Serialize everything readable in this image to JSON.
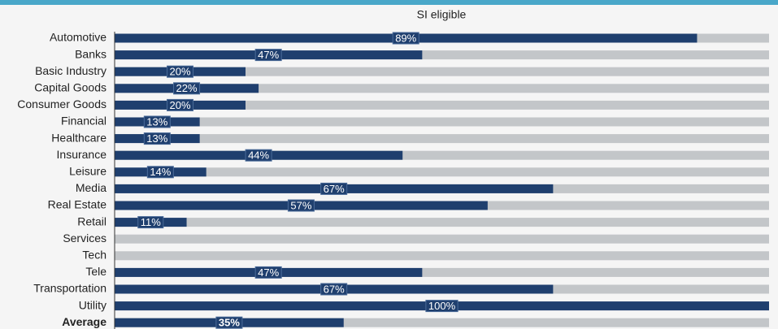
{
  "chart_data": {
    "type": "bar",
    "orientation": "horizontal",
    "title": "SI eligible",
    "categories": [
      "Automotive",
      "Banks",
      "Basic Industry",
      "Capital Goods",
      "Consumer Goods",
      "Financial",
      "Healthcare",
      "Insurance",
      "Leisure",
      "Media",
      "Real Estate",
      "Retail",
      "Services",
      "Tech",
      "Tele",
      "Transportation",
      "Utility",
      "Average"
    ],
    "values": [
      89,
      47,
      20,
      22,
      20,
      13,
      13,
      44,
      14,
      67,
      57,
      11,
      0,
      0,
      47,
      67,
      100,
      35
    ],
    "value_labels": [
      "89%",
      "47%",
      "20%",
      "22%",
      "20%",
      "13%",
      "13%",
      "44%",
      "14%",
      "67%",
      "57%",
      "11%",
      null,
      null,
      "47%",
      "67%",
      "100%",
      "35%"
    ],
    "color": "#1f3f6e",
    "track_color": "#c3c6c9",
    "xlim": [
      0,
      100
    ]
  }
}
